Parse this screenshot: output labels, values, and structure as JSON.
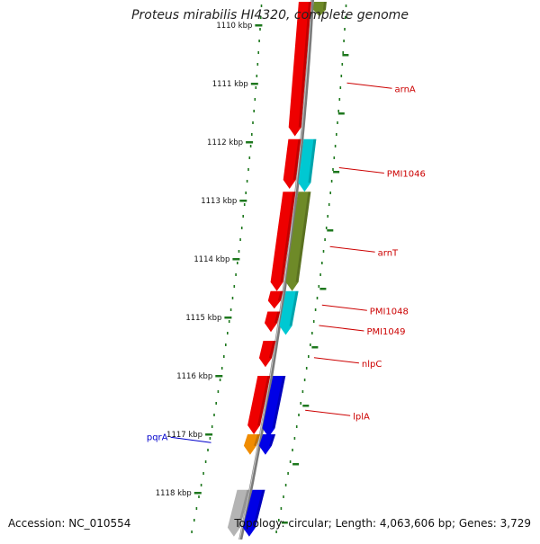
{
  "title": "Proteus mirabilis HI4320, complete genome",
  "footer": {
    "accession": "Accession: NC_010554",
    "topology": "Topology: circular; Length: 4,063,606 bp; Genes: 3,729"
  },
  "colors": {
    "red": "#ee0000",
    "cyan": "#00c8d2",
    "olive": "#6e8a28",
    "blue": "#0000e6",
    "orange": "#f08c00",
    "gray": "#b4b4b4",
    "label_red": "#cc0000",
    "label_blue": "#0000cc",
    "tick_green": "#1e781e",
    "backbone": "#7a7a7a"
  },
  "ticks": [
    {
      "kbp": 1110,
      "label": "1110 kbp"
    },
    {
      "kbp": 1111,
      "label": "1111 kbp"
    },
    {
      "kbp": 1112,
      "label": "1112 kbp"
    },
    {
      "kbp": 1113,
      "label": "1113 kbp"
    },
    {
      "kbp": 1114,
      "label": "1114 kbp"
    },
    {
      "kbp": 1115,
      "label": "1115 kbp"
    },
    {
      "kbp": 1116,
      "label": "1116 kbp"
    },
    {
      "kbp": 1117,
      "label": "1117 kbp"
    },
    {
      "kbp": 1118,
      "label": "1118 kbp"
    }
  ],
  "features": [
    {
      "start": 1109.6,
      "end": 1111.9,
      "strand": "+",
      "color": "red"
    },
    {
      "start": 1109.6,
      "end": 1109.85,
      "strand": "-",
      "color": "olive"
    },
    {
      "start": 1111.95,
      "end": 1112.8,
      "strand": "+",
      "color": "red"
    },
    {
      "start": 1111.95,
      "end": 1112.85,
      "strand": "-",
      "color": "cyan"
    },
    {
      "start": 1112.85,
      "end": 1114.55,
      "strand": "+",
      "color": "red"
    },
    {
      "start": 1112.85,
      "end": 1114.55,
      "strand": "-",
      "color": "olive"
    },
    {
      "start": 1114.55,
      "end": 1114.85,
      "strand": "+",
      "color": "red"
    },
    {
      "start": 1114.55,
      "end": 1115.3,
      "strand": "-",
      "color": "cyan"
    },
    {
      "start": 1114.9,
      "end": 1115.25,
      "strand": "+",
      "color": "red"
    },
    {
      "start": 1115.4,
      "end": 1115.85,
      "strand": "+",
      "color": "red"
    },
    {
      "start": 1116.0,
      "end": 1117.0,
      "strand": "+",
      "color": "red"
    },
    {
      "start": 1116.0,
      "end": 1117.05,
      "strand": "-",
      "color": "blue"
    },
    {
      "start": 1117.0,
      "end": 1117.35,
      "strand": "+",
      "color": "orange"
    },
    {
      "start": 1117.0,
      "end": 1117.35,
      "strand": "-",
      "color": "blue"
    },
    {
      "start": 1117.95,
      "end": 1118.75,
      "strand": "+",
      "color": "gray"
    },
    {
      "start": 1117.95,
      "end": 1118.75,
      "strand": "-",
      "color": "blue"
    }
  ],
  "gene_labels": [
    {
      "name": "arnA",
      "pos": 1111.05,
      "side": "right",
      "color": "label_red"
    },
    {
      "name": "PMI1046",
      "pos": 1112.5,
      "side": "right",
      "color": "label_red"
    },
    {
      "name": "arnT",
      "pos": 1113.85,
      "side": "right",
      "color": "label_red"
    },
    {
      "name": "PMI1048",
      "pos": 1114.85,
      "side": "right",
      "color": "label_red"
    },
    {
      "name": "PMI1049",
      "pos": 1115.2,
      "side": "right",
      "color": "label_red"
    },
    {
      "name": "nlpC",
      "pos": 1115.75,
      "side": "right",
      "color": "label_red"
    },
    {
      "name": "lplA",
      "pos": 1116.65,
      "side": "right",
      "color": "label_red"
    },
    {
      "name": "pqrA",
      "pos": 1117.05,
      "side": "left",
      "color": "label_blue"
    }
  ]
}
